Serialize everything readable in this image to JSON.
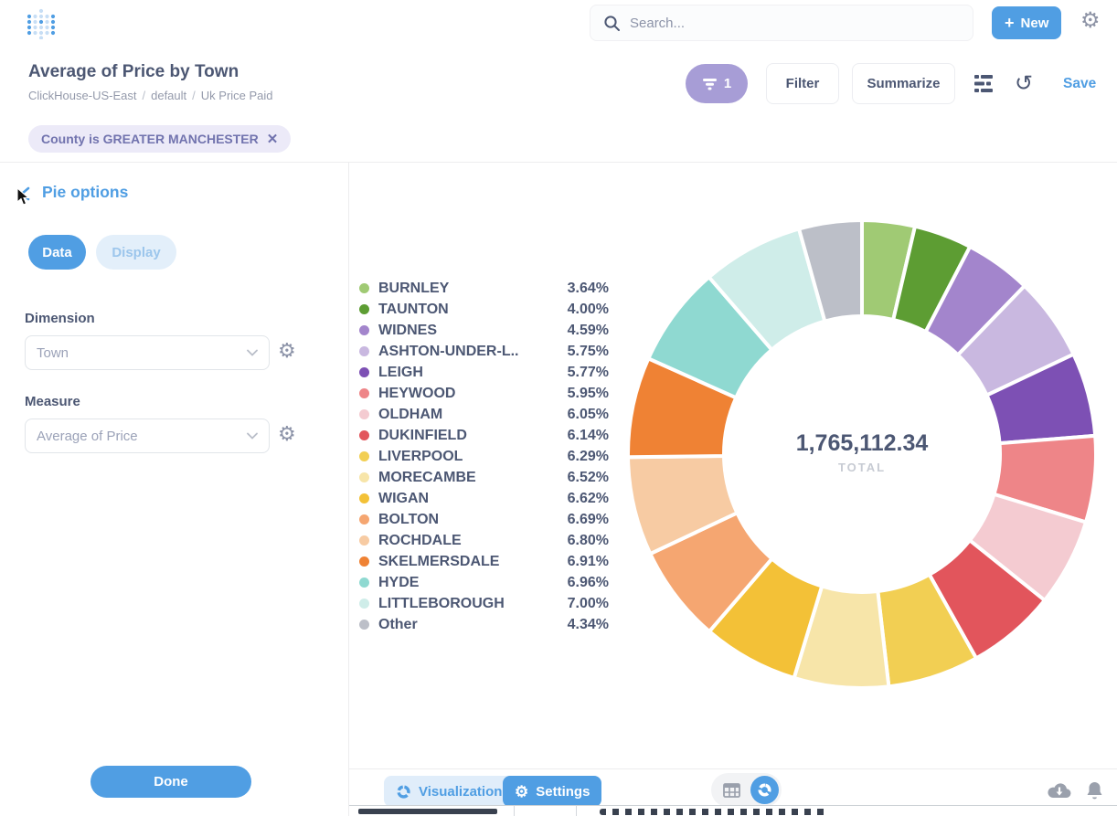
{
  "header": {
    "search_placeholder": "Search...",
    "new_label": "New",
    "brand_color": "#509EE3"
  },
  "question": {
    "title": "Average of Price by Town",
    "breadcrumb": [
      "ClickHouse-US-East",
      "default",
      "Uk Price Paid"
    ],
    "filter_count": "1",
    "filter_label": "Filter",
    "summarize_label": "Summarize",
    "save_label": "Save",
    "filter_pill_color": "#A79DD6"
  },
  "filters": {
    "chip_label": "County is GREATER MANCHESTER",
    "chip_bg": "#ECEAF8",
    "chip_text_color": "#7173AE"
  },
  "sidebar": {
    "title": "Pie options",
    "tabs": [
      {
        "label": "Data",
        "active": true
      },
      {
        "label": "Display",
        "active": false
      }
    ],
    "dimension_label": "Dimension",
    "dimension_value": "Town",
    "measure_label": "Measure",
    "measure_value": "Average of Price",
    "done_label": "Done"
  },
  "chart_data": {
    "type": "pie",
    "donut": true,
    "legend_position": "left",
    "total_display": "1,765,112.34",
    "total_label": "TOTAL",
    "categories": [
      "BURNLEY",
      "TAUNTON",
      "WIDNES",
      "ASHTON-UNDER-L..",
      "LEIGH",
      "HEYWOOD",
      "OLDHAM",
      "DUKINFIELD",
      "LIVERPOOL",
      "MORECAMBE",
      "WIGAN",
      "BOLTON",
      "ROCHDALE",
      "SKELMERSDALE",
      "HYDE",
      "LITTLEBOROUGH",
      "Other"
    ],
    "values": [
      3.64,
      4.0,
      4.59,
      5.75,
      5.77,
      5.95,
      6.05,
      6.14,
      6.29,
      6.52,
      6.62,
      6.69,
      6.8,
      6.91,
      6.96,
      7.0,
      4.34
    ],
    "colors": [
      "#A0CA74",
      "#5D9D33",
      "#A385CC",
      "#C9B8E0",
      "#7D50B4",
      "#EE8588",
      "#F4CBD1",
      "#E2555C",
      "#F2CF53",
      "#F7E5A9",
      "#F3C137",
      "#F5A671",
      "#F7CBA3",
      "#EF8234",
      "#8FD9D1",
      "#CFEDE9",
      "#BCBFC8"
    ]
  },
  "footer": {
    "visualization_label": "Visualization",
    "settings_label": "Settings"
  }
}
